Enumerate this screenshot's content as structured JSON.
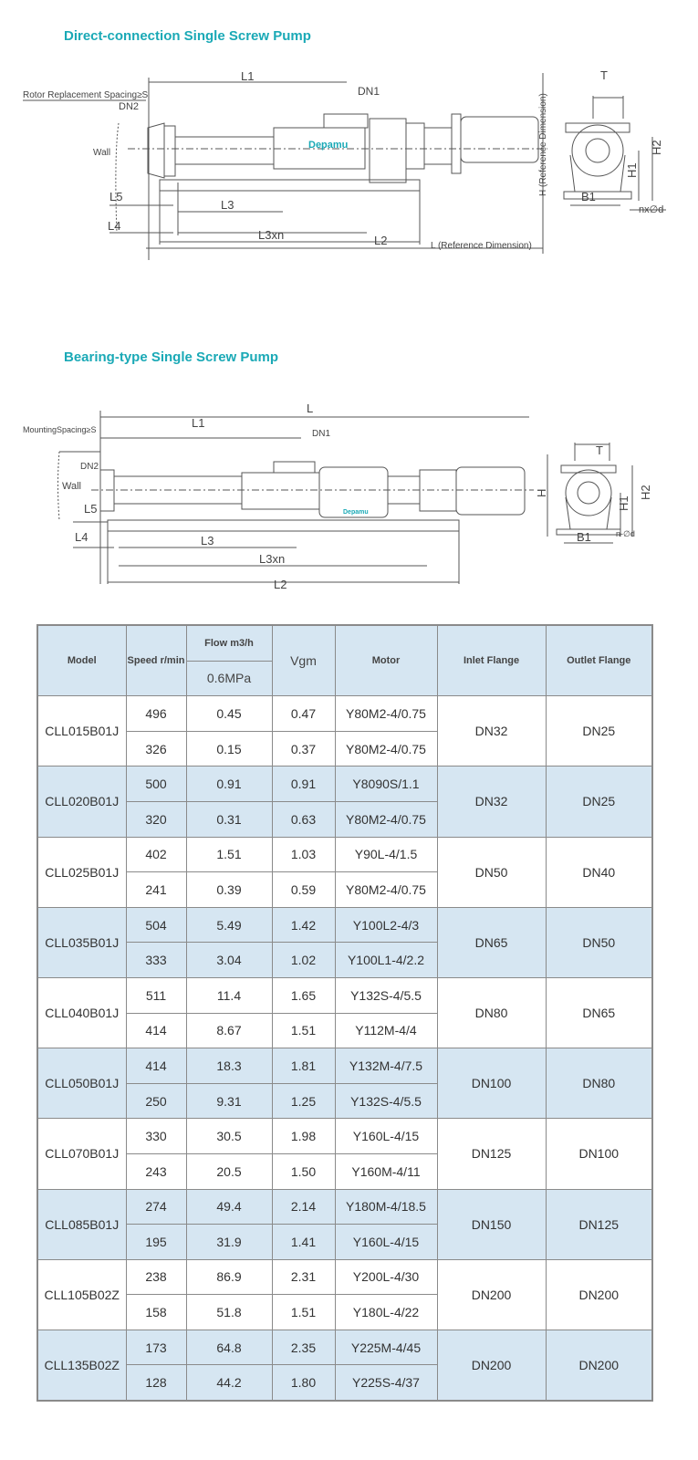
{
  "section1": {
    "title": "Direct-connection Single Screw Pump",
    "labels": {
      "l1": "L1",
      "dn1": "DN1",
      "dn2": "DN2",
      "rotor_spacing": "Rotor Replacement Spacing≥S",
      "wall": "Wall",
      "l5": "L5",
      "l3": "L3",
      "l4": "L4",
      "l3xn": "L3xn",
      "l2": "L2",
      "l_ref": "L (Reference Dimension)",
      "h_ref": "H (Reference Dimension)",
      "t": "T",
      "h2": "H2",
      "h1": "H1",
      "b1": "B1",
      "nxd": "nx∅d",
      "logo": "Depamu"
    }
  },
  "section2": {
    "title": "Bearing-type Single Screw Pump",
    "labels": {
      "l": "L",
      "l1": "L1",
      "mounting_spacing": "MountingSpacing≥S",
      "dn1": "DN1",
      "dn2": "DN2",
      "wall": "Wall",
      "l5": "L5",
      "l4": "L4",
      "l3": "L3",
      "l3xn": "L3xn",
      "l2": "L2",
      "t": "T",
      "h": "H",
      "h1": "H1",
      "h2": "H2",
      "b1": "B1",
      "nd": "n-∅d",
      "logo": "Depamu"
    }
  },
  "table": {
    "headers": {
      "model": "Model",
      "speed": "Speed r/min",
      "flow": "Flow m3/h",
      "pressure": "0.6MPa",
      "vgm": "Vgm",
      "motor": "Motor",
      "inlet": "Inlet Flange",
      "outlet": "Outlet Flange"
    },
    "models": [
      {
        "model": "CLL015B01J",
        "inlet": "DN32",
        "outlet": "DN25",
        "rows": [
          {
            "speed": "496",
            "flow": "0.45",
            "vgm": "0.47",
            "motor": "Y80M2-4/0.75"
          },
          {
            "speed": "326",
            "flow": "0.15",
            "vgm": "0.37",
            "motor": "Y80M2-4/0.75"
          }
        ]
      },
      {
        "model": "CLL020B01J",
        "inlet": "DN32",
        "outlet": "DN25",
        "rows": [
          {
            "speed": "500",
            "flow": "0.91",
            "vgm": "0.91",
            "motor": "Y8090S/1.1"
          },
          {
            "speed": "320",
            "flow": "0.31",
            "vgm": "0.63",
            "motor": "Y80M2-4/0.75"
          }
        ]
      },
      {
        "model": "CLL025B01J",
        "inlet": "DN50",
        "outlet": "DN40",
        "rows": [
          {
            "speed": "402",
            "flow": "1.51",
            "vgm": "1.03",
            "motor": "Y90L-4/1.5"
          },
          {
            "speed": "241",
            "flow": "0.39",
            "vgm": "0.59",
            "motor": "Y80M2-4/0.75"
          }
        ]
      },
      {
        "model": "CLL035B01J",
        "inlet": "DN65",
        "outlet": "DN50",
        "rows": [
          {
            "speed": "504",
            "flow": "5.49",
            "vgm": "1.42",
            "motor": "Y100L2-4/3"
          },
          {
            "speed": "333",
            "flow": "3.04",
            "vgm": "1.02",
            "motor": "Y100L1-4/2.2"
          }
        ]
      },
      {
        "model": "CLL040B01J",
        "inlet": "DN80",
        "outlet": "DN65",
        "rows": [
          {
            "speed": "511",
            "flow": "11.4",
            "vgm": "1.65",
            "motor": "Y132S-4/5.5"
          },
          {
            "speed": "414",
            "flow": "8.67",
            "vgm": "1.51",
            "motor": "Y112M-4/4"
          }
        ]
      },
      {
        "model": "CLL050B01J",
        "inlet": "DN100",
        "outlet": "DN80",
        "rows": [
          {
            "speed": "414",
            "flow": "18.3",
            "vgm": "1.81",
            "motor": "Y132M-4/7.5"
          },
          {
            "speed": "250",
            "flow": "9.31",
            "vgm": "1.25",
            "motor": "Y132S-4/5.5"
          }
        ]
      },
      {
        "model": "CLL070B01J",
        "inlet": "DN125",
        "outlet": "DN100",
        "rows": [
          {
            "speed": "330",
            "flow": "30.5",
            "vgm": "1.98",
            "motor": "Y160L-4/15"
          },
          {
            "speed": "243",
            "flow": "20.5",
            "vgm": "1.50",
            "motor": "Y160M-4/11"
          }
        ]
      },
      {
        "model": "CLL085B01J",
        "inlet": "DN150",
        "outlet": "DN125",
        "rows": [
          {
            "speed": "274",
            "flow": "49.4",
            "vgm": "2.14",
            "motor": "Y180M-4/18.5"
          },
          {
            "speed": "195",
            "flow": "31.9",
            "vgm": "1.41",
            "motor": "Y160L-4/15"
          }
        ]
      },
      {
        "model": "CLL105B02Z",
        "inlet": "DN200",
        "outlet": "DN200",
        "rows": [
          {
            "speed": "238",
            "flow": "86.9",
            "vgm": "2.31",
            "motor": "Y200L-4/30"
          },
          {
            "speed": "158",
            "flow": "51.8",
            "vgm": "1.51",
            "motor": "Y180L-4/22"
          }
        ]
      },
      {
        "model": "CLL135B02Z",
        "inlet": "DN200",
        "outlet": "DN200",
        "rows": [
          {
            "speed": "173",
            "flow": "64.8",
            "vgm": "2.35",
            "motor": "Y225M-4/45"
          },
          {
            "speed": "128",
            "flow": "44.2",
            "vgm": "1.80",
            "motor": "Y225S-4/37"
          }
        ]
      }
    ]
  },
  "colors": {
    "title": "#1aa9b6",
    "header_bg": "#d6e6f2",
    "shade_bg": "#d6e6f2",
    "border": "#8a8a8a"
  }
}
